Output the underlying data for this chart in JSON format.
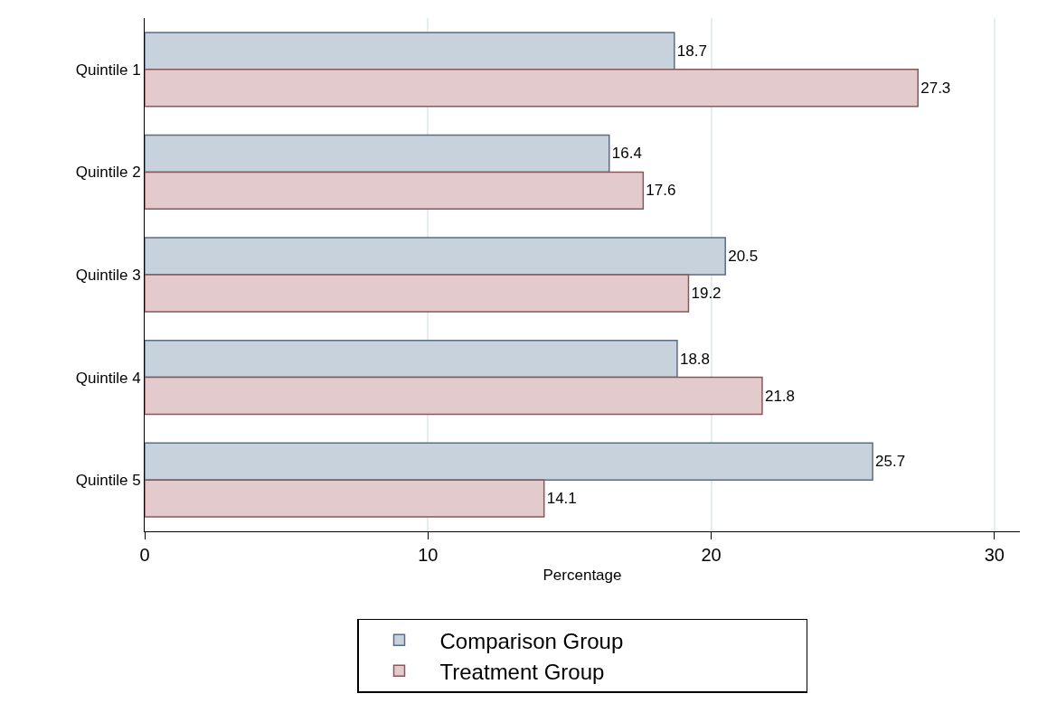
{
  "chart_data": {
    "type": "bar",
    "orientation": "horizontal",
    "xlabel": "Percentage",
    "categories": [
      "Quintile 1",
      "Quintile 2",
      "Quintile 3",
      "Quintile 4",
      "Quintile 5"
    ],
    "series": [
      {
        "name": "Comparison Group",
        "color": "#c8d2dc",
        "values": [
          18.7,
          16.4,
          20.5,
          18.8,
          25.7
        ]
      },
      {
        "name": "Treatment Group",
        "color": "#e3cbcd",
        "values": [
          27.3,
          17.6,
          19.2,
          21.8,
          14.1
        ]
      }
    ],
    "xlim": [
      0,
      30.9
    ],
    "xticks": [
      0,
      10,
      20,
      30
    ],
    "grid": "x",
    "legend": "bottom",
    "data_labels": true
  }
}
